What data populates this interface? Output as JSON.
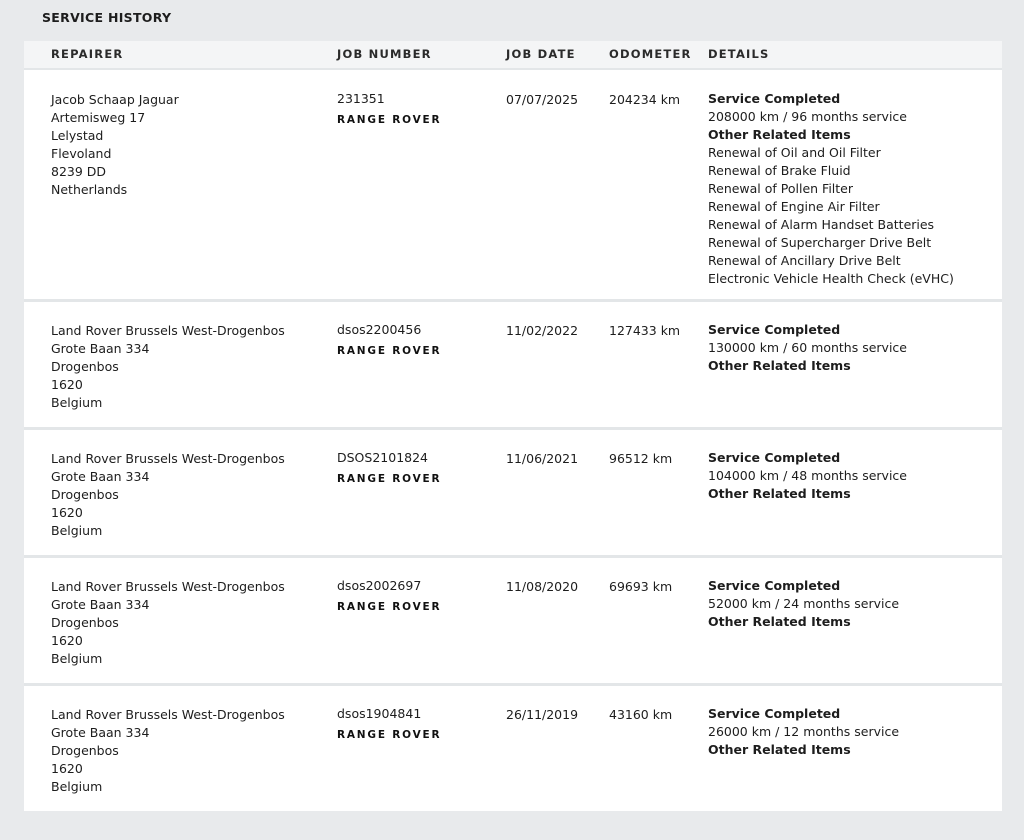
{
  "page": {
    "title": "SERVICE HISTORY"
  },
  "columns": {
    "repairer": "REPAIRER",
    "job_number": "JOB NUMBER",
    "job_date": "JOB DATE",
    "odometer": "ODOMETER",
    "details": "DETAILS"
  },
  "rows": [
    {
      "repairer": [
        "Jacob Schaap Jaguar",
        "Artemisweg 17",
        "Lelystad",
        "Flevoland",
        "8239 DD",
        "Netherlands"
      ],
      "job_number": "231351",
      "brand": "RANGE ROVER",
      "job_date": "07/07/2025",
      "odometer": "204234 km",
      "details": {
        "status": "Service Completed",
        "service": "208000 km / 96 months service",
        "related_heading": "Other Related Items",
        "items": [
          "Renewal of Oil and Oil Filter",
          "Renewal of Brake Fluid",
          "Renewal of Pollen Filter",
          "Renewal of Engine Air Filter",
          "Renewal of Alarm Handset Batteries",
          "Renewal of Supercharger Drive Belt",
          "Renewal of Ancillary Drive Belt",
          "Electronic Vehicle Health Check (eVHC)"
        ]
      }
    },
    {
      "repairer": [
        "Land Rover Brussels West-Drogenbos",
        "Grote Baan 334",
        "Drogenbos",
        "1620",
        "Belgium"
      ],
      "job_number": "dsos2200456",
      "brand": "RANGE ROVER",
      "job_date": "11/02/2022",
      "odometer": "127433 km",
      "details": {
        "status": "Service Completed",
        "service": "130000 km / 60 months service",
        "related_heading": "Other Related Items",
        "items": []
      }
    },
    {
      "repairer": [
        "Land Rover Brussels West-Drogenbos",
        "Grote Baan 334",
        "Drogenbos",
        "1620",
        "Belgium"
      ],
      "job_number": "DSOS2101824",
      "brand": "RANGE ROVER",
      "job_date": "11/06/2021",
      "odometer": "96512 km",
      "details": {
        "status": "Service Completed",
        "service": "104000 km / 48 months service",
        "related_heading": "Other Related Items",
        "items": []
      }
    },
    {
      "repairer": [
        "Land Rover Brussels West-Drogenbos",
        "Grote Baan 334",
        "Drogenbos",
        "1620",
        "Belgium"
      ],
      "job_number": "dsos2002697",
      "brand": "RANGE ROVER",
      "job_date": "11/08/2020",
      "odometer": "69693 km",
      "details": {
        "status": "Service Completed",
        "service": "52000 km / 24 months service",
        "related_heading": "Other Related Items",
        "items": []
      }
    },
    {
      "repairer": [
        "Land Rover Brussels West-Drogenbos",
        "Grote Baan 334",
        "Drogenbos",
        "1620",
        "Belgium"
      ],
      "job_number": "dsos1904841",
      "brand": "RANGE ROVER",
      "job_date": "26/11/2019",
      "odometer": "43160 km",
      "details": {
        "status": "Service Completed",
        "service": "26000 km / 12 months service",
        "related_heading": "Other Related Items",
        "items": []
      }
    }
  ]
}
